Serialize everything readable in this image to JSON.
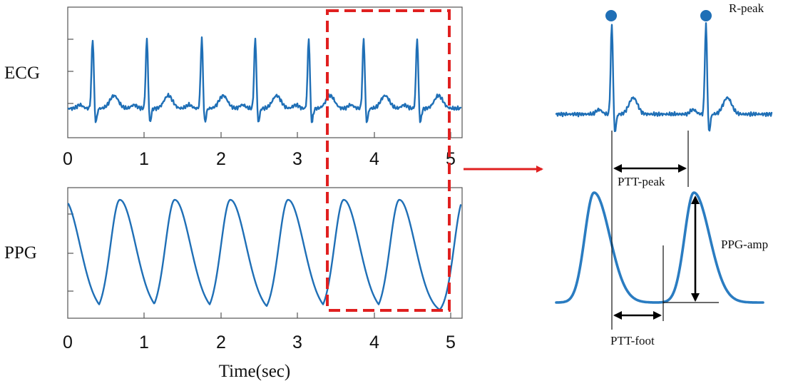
{
  "left_panel": {
    "ecg_label": "ECG",
    "ppg_label": "PPG",
    "x_axis_label": "Time(sec)",
    "x_ticks": [
      "0",
      "1",
      "2",
      "3",
      "4",
      "5"
    ]
  },
  "right_panel": {
    "r_peak_label": "R-peak",
    "ptt_peak_label": "PTT-peak",
    "ppg_amp_label": "PPG-amp",
    "ptt_foot_label": "PTT-foot"
  },
  "colors": {
    "signal": "#1f6fb6",
    "highlight": "#e02020",
    "marker": "#1f6fb6"
  }
}
